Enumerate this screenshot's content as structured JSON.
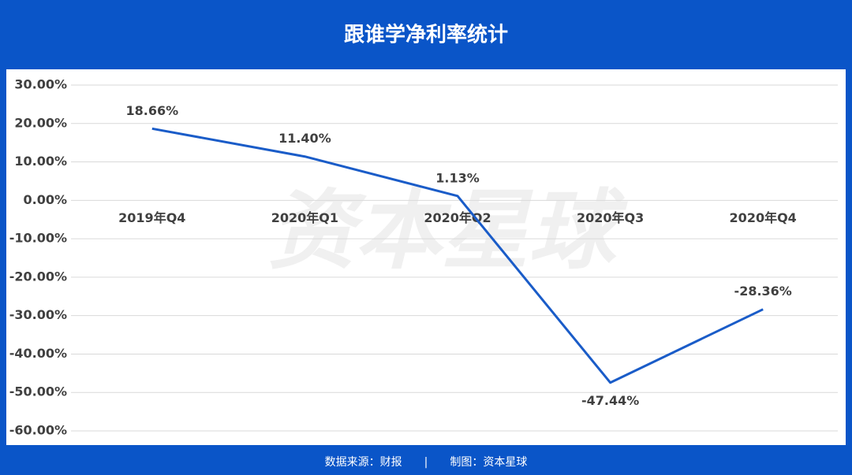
{
  "chart_data": {
    "type": "line",
    "title": "跟谁学净利率统计",
    "categories": [
      "2019年Q4",
      "2020年Q1",
      "2020年Q2",
      "2020年Q3",
      "2020年Q4"
    ],
    "series": [
      {
        "color": "#1a5cc8",
        "values": [
          18.66,
          11.4,
          1.13,
          -47.44,
          -28.36
        ],
        "value_labels": [
          "18.66%",
          "11.40%",
          "1.13%",
          "-47.44%",
          "-28.36%"
        ]
      }
    ],
    "ylim": [
      -60,
      30
    ],
    "yticks": [
      {
        "value": 30,
        "label": "30.00%"
      },
      {
        "value": 20,
        "label": "20.00%"
      },
      {
        "value": 10,
        "label": "10.00%"
      },
      {
        "value": 0,
        "label": "0.00%"
      },
      {
        "value": -10,
        "label": "-10.00%"
      },
      {
        "value": -20,
        "label": "-20.00%"
      },
      {
        "value": -30,
        "label": "-30.00%"
      },
      {
        "value": -40,
        "label": "-40.00%"
      },
      {
        "value": -50,
        "label": "-50.00%"
      },
      {
        "value": -60,
        "label": "-60.00%"
      }
    ],
    "grid": true,
    "watermark": "资本星球",
    "footer": "数据来源：财报　　|　　制图：资本星球"
  }
}
